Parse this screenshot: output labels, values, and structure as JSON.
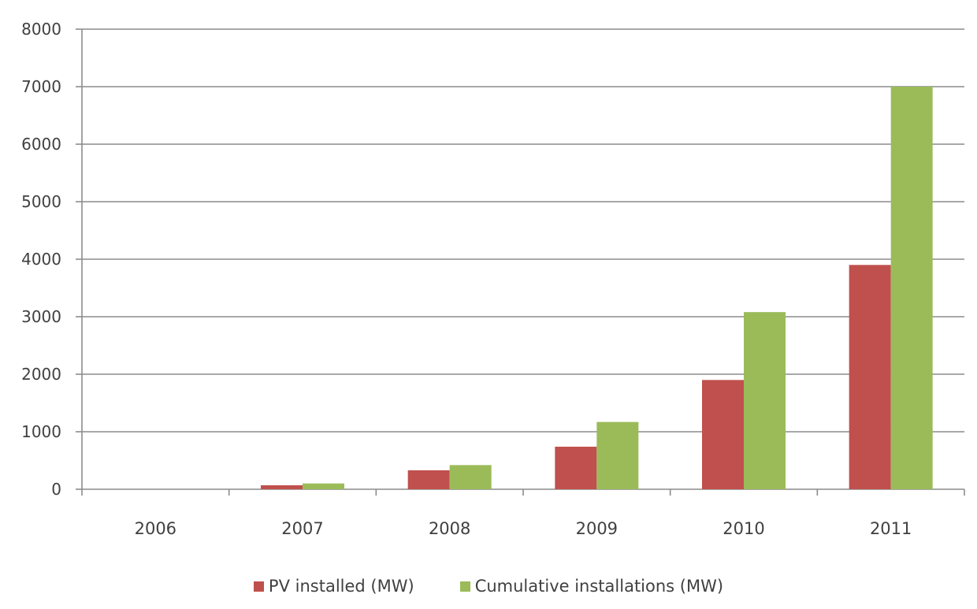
{
  "chart_data": {
    "type": "bar",
    "title": "",
    "xlabel": "",
    "ylabel": "",
    "categories": [
      "2006",
      "2007",
      "2008",
      "2009",
      "2010",
      "2011"
    ],
    "ylim": [
      0,
      8000
    ],
    "yticks": [
      0,
      1000,
      2000,
      3000,
      4000,
      5000,
      6000,
      7000,
      8000
    ],
    "grid": true,
    "legend_position": "bottom",
    "series": [
      {
        "name": "PV installed (MW)",
        "color": "#c0504d",
        "values": [
          0,
          70,
          330,
          740,
          1900,
          3900
        ]
      },
      {
        "name": "Cumulative installations  (MW)",
        "color": "#9bbb59",
        "values": [
          0,
          100,
          420,
          1170,
          3080,
          7000
        ]
      }
    ]
  }
}
